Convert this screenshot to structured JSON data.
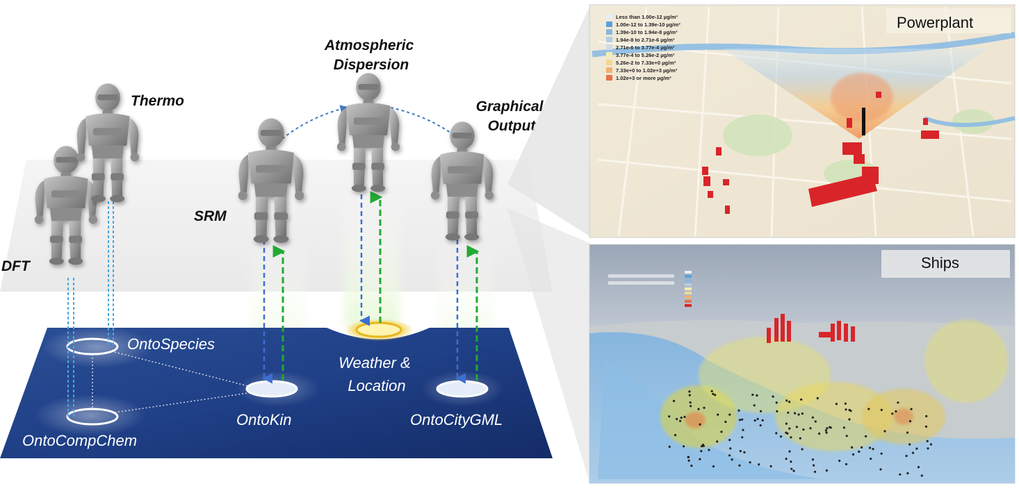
{
  "agents": {
    "dft": "DFT",
    "thermo": "Thermo",
    "srm": "SRM",
    "atmospheric": [
      "Atmospheric",
      "Dispersion"
    ],
    "graphical": [
      "Graphical",
      "Output"
    ]
  },
  "ontologies": {
    "onto_species": "OntoSpecies",
    "onto_compchem": "OntoCompChem",
    "onto_kin": "OntoKin",
    "weather_location": [
      "Weather &",
      "Location"
    ],
    "onto_citygml": "OntoCityGML"
  },
  "panels": {
    "powerplant": {
      "title": "Powerplant",
      "legend": [
        {
          "label": "Less than 1.00e-12 µg/m³",
          "color": "#e8eef5"
        },
        {
          "label": "1.00e-12 to 1.39e-10 µg/m³",
          "color": "#5aa0dc"
        },
        {
          "label": "1.39e-10 to 1.94e-8 µg/m³",
          "color": "#8ab6de"
        },
        {
          "label": "1.94e-8 to 2.71e-6 µg/m³",
          "color": "#b2cde3"
        },
        {
          "label": "2.71e-6 to 3.77e-4 µg/m³",
          "color": "#cfdde6"
        },
        {
          "label": "3.77e-4 to 5.26e-2 µg/m³",
          "color": "#f4eeb0"
        },
        {
          "label": "5.26e-2 to 7.33e+0 µg/m³",
          "color": "#f6d890"
        },
        {
          "label": "7.33e+0 to 1.02e+3 µg/m³",
          "color": "#f4b070"
        },
        {
          "label": "1.02e+3 or more µg/m³",
          "color": "#e8704a"
        }
      ]
    },
    "ships": {
      "title": "Ships"
    }
  },
  "colors": {
    "platform_dark": "#1d3a7a",
    "arrow_down": "#3d6fd0",
    "arrow_up": "#22aa33",
    "link_dotted": "#4aa6e0",
    "building_red": "#d9252a"
  }
}
